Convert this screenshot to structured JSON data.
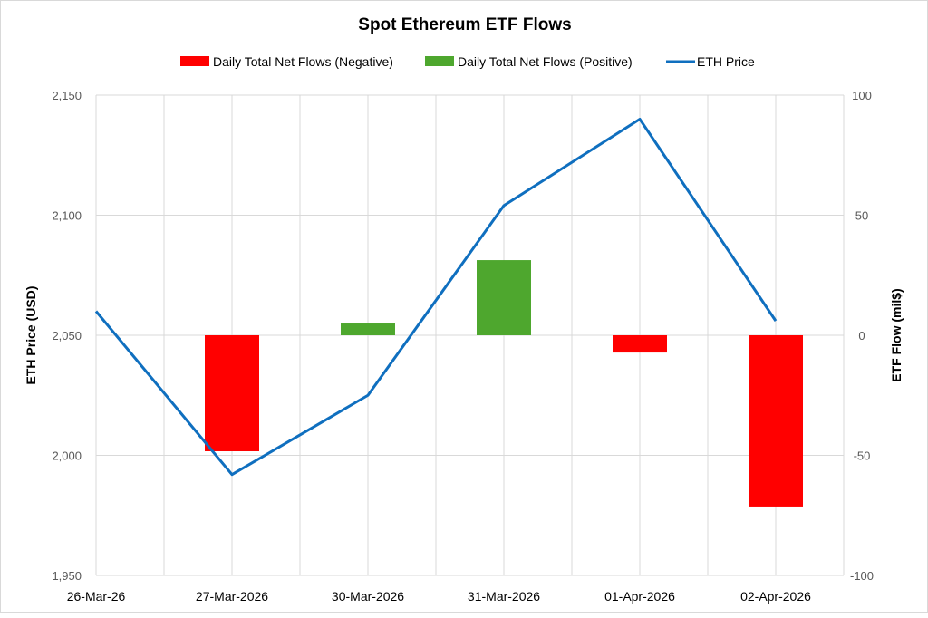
{
  "chart_data": {
    "type": "bar+line",
    "title": "Spot Ethereum ETF Flows",
    "categories": [
      "26-Mar-26",
      "27-Mar-2026",
      "30-Mar-2026",
      "31-Mar-2026",
      "01-Apr-2026",
      "02-Apr-2026"
    ],
    "series": [
      {
        "name": "Daily Total Net Flows (Negative)",
        "type": "bar",
        "axis": "right",
        "color": "#ff0000"
      },
      {
        "name": "Daily Total Net Flows (Positive)",
        "type": "bar",
        "axis": "right",
        "color": "#4ea72e"
      },
      {
        "name": "ETH Price",
        "type": "line",
        "axis": "left",
        "color": "#0f6fbf",
        "values": [
          2060,
          1992,
          2025,
          2104,
          2140,
          2056
        ]
      }
    ],
    "flows": [
      null,
      -48.3,
      4.9,
      31.3,
      -7.2,
      -71.3
    ],
    "ylabel": "ETH Price (USD)",
    "y2label": "ETF Flow (mil$)",
    "ylim": [
      1950,
      2150
    ],
    "y2lim": [
      -100,
      100
    ],
    "yticks": [
      "2,150",
      "2,100",
      "2,050",
      "2,000",
      "1,950"
    ],
    "y2ticks": [
      "100",
      "50",
      "0",
      "-50",
      "-100"
    ],
    "legend_position": "top",
    "grid": true
  }
}
